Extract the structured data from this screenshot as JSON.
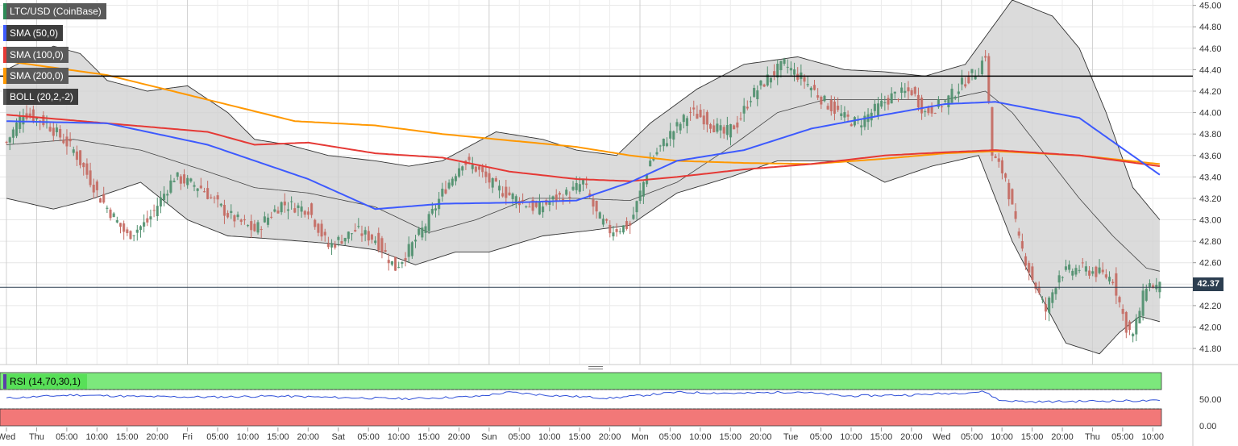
{
  "legend": [
    {
      "label": "LTC/USD (CoinBase)",
      "color": "#2e8b57"
    },
    {
      "label": "SMA (50,0)",
      "color": "#3d5afe"
    },
    {
      "label": "SMA (100,0)",
      "color": "#e53935"
    },
    {
      "label": "SMA (200,0)",
      "color": "#ff9800"
    },
    {
      "label": "BOLL (20,2,-2)",
      "color": "#555555"
    }
  ],
  "price_badge": "42.37",
  "rsi_label": "RSI (14,70,30,1)",
  "chart_data": {
    "type": "candlestick",
    "symbol": "LTC/USD (CoinBase)",
    "y_axis": {
      "ticks": [
        "45.00",
        "44.80",
        "44.60",
        "44.40",
        "44.20",
        "44.00",
        "43.80",
        "43.60",
        "43.40",
        "43.20",
        "43.00",
        "42.80",
        "42.60",
        "42.40",
        "42.20",
        "42.00",
        "41.80"
      ],
      "range": [
        41.65,
        45.05
      ],
      "side": "right"
    },
    "x_axis": {
      "ticks": [
        "Wed",
        "Thu",
        "05:00",
        "10:00",
        "15:00",
        "20:00",
        "Fri",
        "05:00",
        "10:00",
        "15:00",
        "20:00",
        "Sat",
        "05:00",
        "10:00",
        "15:00",
        "20:00",
        "Sun",
        "05:00",
        "10:00",
        "15:00",
        "20:00",
        "Mon",
        "05:00",
        "10:00",
        "15:00",
        "20:00",
        "Tue",
        "05:00",
        "10:00",
        "15:00",
        "20:00",
        "Wed",
        "05:00",
        "10:00",
        "15:00",
        "20:00",
        "Thu",
        "05:00",
        "10:00"
      ]
    },
    "horizontal_lines": [
      {
        "value": 44.34,
        "color": "#000000"
      },
      {
        "value": 42.37,
        "color": "#2c3e50"
      }
    ],
    "last_price": 42.37,
    "close_path": [
      [
        0,
        43.72
      ],
      [
        5,
        44.0
      ],
      [
        12,
        43.9
      ],
      [
        20,
        43.65
      ],
      [
        28,
        43.2
      ],
      [
        36,
        42.85
      ],
      [
        42,
        42.98
      ],
      [
        50,
        43.4
      ],
      [
        58,
        43.3
      ],
      [
        66,
        43.05
      ],
      [
        74,
        42.9
      ],
      [
        82,
        43.15
      ],
      [
        90,
        43.1
      ],
      [
        96,
        42.75
      ],
      [
        104,
        42.9
      ],
      [
        110,
        42.82
      ],
      [
        116,
        42.55
      ],
      [
        120,
        42.72
      ],
      [
        126,
        43.0
      ],
      [
        130,
        43.25
      ],
      [
        136,
        43.55
      ],
      [
        140,
        43.48
      ],
      [
        146,
        43.3
      ],
      [
        152,
        43.2
      ],
      [
        158,
        43.1
      ],
      [
        164,
        43.2
      ],
      [
        168,
        43.25
      ],
      [
        172,
        43.35
      ],
      [
        176,
        43.05
      ],
      [
        180,
        42.9
      ],
      [
        186,
        42.95
      ],
      [
        192,
        43.55
      ],
      [
        198,
        43.8
      ],
      [
        204,
        44.0
      ],
      [
        208,
        43.95
      ],
      [
        214,
        43.8
      ],
      [
        218,
        43.9
      ],
      [
        222,
        44.15
      ],
      [
        228,
        44.35
      ],
      [
        232,
        44.45
      ],
      [
        238,
        44.3
      ],
      [
        244,
        44.1
      ],
      [
        250,
        43.95
      ],
      [
        254,
        43.9
      ],
      [
        260,
        44.05
      ],
      [
        264,
        44.15
      ],
      [
        270,
        44.2
      ],
      [
        274,
        44.0
      ],
      [
        280,
        44.1
      ],
      [
        286,
        44.3
      ],
      [
        290,
        44.4
      ],
      [
        292,
        44.55
      ],
      [
        294,
        43.6
      ],
      [
        298,
        43.4
      ],
      [
        302,
        42.8
      ],
      [
        306,
        42.45
      ],
      [
        310,
        42.15
      ],
      [
        314,
        42.5
      ],
      [
        320,
        42.55
      ],
      [
        326,
        42.5
      ],
      [
        330,
        42.45
      ],
      [
        334,
        42.0
      ],
      [
        336,
        41.92
      ],
      [
        340,
        42.4
      ],
      [
        344,
        42.37
      ]
    ],
    "sma_50": [
      [
        0,
        43.92
      ],
      [
        30,
        43.9
      ],
      [
        60,
        43.7
      ],
      [
        90,
        43.38
      ],
      [
        110,
        43.1
      ],
      [
        130,
        43.15
      ],
      [
        150,
        43.16
      ],
      [
        170,
        43.18
      ],
      [
        186,
        43.35
      ],
      [
        200,
        43.55
      ],
      [
        220,
        43.65
      ],
      [
        240,
        43.85
      ],
      [
        262,
        43.98
      ],
      [
        280,
        44.08
      ],
      [
        295,
        44.1
      ],
      [
        320,
        43.95
      ],
      [
        344,
        43.42
      ]
    ],
    "sma_100": [
      [
        0,
        43.98
      ],
      [
        30,
        43.9
      ],
      [
        60,
        43.82
      ],
      [
        74,
        43.7
      ],
      [
        90,
        43.72
      ],
      [
        110,
        43.62
      ],
      [
        130,
        43.58
      ],
      [
        150,
        43.45
      ],
      [
        170,
        43.38
      ],
      [
        186,
        43.36
      ],
      [
        200,
        43.4
      ],
      [
        220,
        43.47
      ],
      [
        240,
        43.52
      ],
      [
        262,
        43.6
      ],
      [
        280,
        43.63
      ],
      [
        295,
        43.65
      ],
      [
        320,
        43.6
      ],
      [
        344,
        43.5
      ]
    ],
    "sma_200": [
      [
        0,
        44.48
      ],
      [
        30,
        44.35
      ],
      [
        60,
        44.12
      ],
      [
        86,
        43.92
      ],
      [
        110,
        43.88
      ],
      [
        130,
        43.8
      ],
      [
        150,
        43.74
      ],
      [
        170,
        43.68
      ],
      [
        186,
        43.6
      ],
      [
        200,
        43.55
      ],
      [
        220,
        43.53
      ],
      [
        240,
        43.52
      ],
      [
        262,
        43.57
      ],
      [
        280,
        43.62
      ],
      [
        295,
        43.64
      ],
      [
        320,
        43.6
      ],
      [
        344,
        43.52
      ]
    ],
    "bollinger_upper": [
      [
        0,
        44.4
      ],
      [
        14,
        44.62
      ],
      [
        22,
        44.55
      ],
      [
        30,
        44.3
      ],
      [
        42,
        44.2
      ],
      [
        54,
        44.25
      ],
      [
        66,
        44.0
      ],
      [
        74,
        43.75
      ],
      [
        84,
        43.7
      ],
      [
        96,
        43.6
      ],
      [
        110,
        43.55
      ],
      [
        120,
        43.5
      ],
      [
        130,
        43.55
      ],
      [
        146,
        43.82
      ],
      [
        160,
        43.75
      ],
      [
        170,
        43.65
      ],
      [
        182,
        43.6
      ],
      [
        192,
        43.9
      ],
      [
        206,
        44.22
      ],
      [
        220,
        44.45
      ],
      [
        236,
        44.52
      ],
      [
        250,
        44.4
      ],
      [
        262,
        44.38
      ],
      [
        274,
        44.34
      ],
      [
        286,
        44.45
      ],
      [
        300,
        45.05
      ],
      [
        312,
        44.9
      ],
      [
        320,
        44.6
      ],
      [
        328,
        44.0
      ],
      [
        336,
        43.3
      ],
      [
        344,
        43.0
      ]
    ],
    "bollinger_middle": [
      [
        0,
        43.7
      ],
      [
        20,
        43.75
      ],
      [
        40,
        43.65
      ],
      [
        60,
        43.45
      ],
      [
        74,
        43.3
      ],
      [
        90,
        43.25
      ],
      [
        110,
        43.12
      ],
      [
        126,
        42.88
      ],
      [
        140,
        43.0
      ],
      [
        156,
        43.2
      ],
      [
        170,
        43.2
      ],
      [
        186,
        43.18
      ],
      [
        200,
        43.35
      ],
      [
        216,
        43.68
      ],
      [
        230,
        44.0
      ],
      [
        244,
        44.12
      ],
      [
        262,
        44.12
      ],
      [
        280,
        44.12
      ],
      [
        292,
        44.2
      ],
      [
        300,
        44.0
      ],
      [
        310,
        43.6
      ],
      [
        320,
        43.2
      ],
      [
        330,
        42.85
      ],
      [
        340,
        42.55
      ],
      [
        344,
        42.52
      ]
    ],
    "bollinger_lower": [
      [
        0,
        43.2
      ],
      [
        14,
        43.1
      ],
      [
        24,
        43.18
      ],
      [
        40,
        43.35
      ],
      [
        54,
        43.0
      ],
      [
        66,
        42.85
      ],
      [
        80,
        42.82
      ],
      [
        96,
        42.78
      ],
      [
        110,
        42.72
      ],
      [
        122,
        42.58
      ],
      [
        134,
        42.7
      ],
      [
        144,
        42.7
      ],
      [
        160,
        42.85
      ],
      [
        174,
        42.9
      ],
      [
        186,
        42.95
      ],
      [
        200,
        43.25
      ],
      [
        216,
        43.4
      ],
      [
        230,
        43.55
      ],
      [
        250,
        43.55
      ],
      [
        262,
        43.35
      ],
      [
        276,
        43.5
      ],
      [
        290,
        43.6
      ],
      [
        300,
        42.8
      ],
      [
        310,
        42.2
      ],
      [
        316,
        41.85
      ],
      [
        326,
        41.75
      ],
      [
        332,
        41.95
      ],
      [
        338,
        42.1
      ],
      [
        344,
        42.05
      ]
    ],
    "rsi": {
      "label": "RSI (14,70,30,1)",
      "period": 14,
      "upper": 70,
      "lower": 30,
      "ticks": [
        "50.00",
        "0.00"
      ],
      "range": [
        0,
        100
      ],
      "values": [
        [
          0,
          52
        ],
        [
          20,
          58
        ],
        [
          40,
          55
        ],
        [
          60,
          54
        ],
        [
          80,
          56
        ],
        [
          100,
          53
        ],
        [
          120,
          51
        ],
        [
          140,
          55
        ],
        [
          150,
          63
        ],
        [
          160,
          58
        ],
        [
          180,
          52
        ],
        [
          200,
          63
        ],
        [
          220,
          61
        ],
        [
          236,
          64
        ],
        [
          250,
          56
        ],
        [
          270,
          58
        ],
        [
          292,
          64
        ],
        [
          296,
          48
        ],
        [
          306,
          45
        ],
        [
          330,
          47
        ],
        [
          344,
          47
        ]
      ]
    }
  }
}
